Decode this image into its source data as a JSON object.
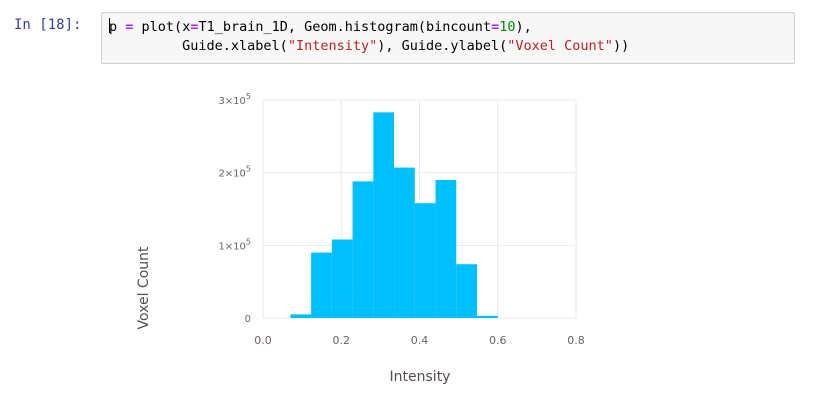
{
  "cell": {
    "prompt": "In [18]:",
    "code_lines": [
      [
        {
          "t": "p",
          "c": "plain"
        },
        {
          "t": " ",
          "c": "plain"
        },
        {
          "t": "=",
          "c": "op"
        },
        {
          "t": " plot(x",
          "c": "plain"
        },
        {
          "t": "=",
          "c": "op"
        },
        {
          "t": "T1_brain_1D, Geom.histogram(bincount",
          "c": "plain"
        },
        {
          "t": "=",
          "c": "op"
        },
        {
          "t": "10",
          "c": "num"
        },
        {
          "t": "),",
          "c": "plain"
        }
      ],
      [
        {
          "t": "         Guide.xlabel(",
          "c": "plain"
        },
        {
          "t": "\"Intensity\"",
          "c": "str"
        },
        {
          "t": "), Guide.ylabel(",
          "c": "plain"
        },
        {
          "t": "\"Voxel Count\"",
          "c": "str"
        },
        {
          "t": "))",
          "c": "plain"
        }
      ]
    ]
  },
  "colors": {
    "bar": "#00bfff",
    "grid": "#e9e9e9",
    "tick_text": "#6c606b",
    "label_text": "#564a55",
    "prompt": "#303f9f"
  },
  "chart_data": {
    "type": "bar",
    "xlabel": "Intensity",
    "ylabel": "Voxel Count",
    "xlim": [
      0.0,
      0.8
    ],
    "ylim": [
      0,
      300000
    ],
    "x_ticks": [
      "0.0",
      "0.2",
      "0.4",
      "0.6",
      "0.8"
    ],
    "y_ticks": [
      {
        "value": 0,
        "mantissa": "0",
        "exp": ""
      },
      {
        "value": 100000,
        "mantissa": "1×10",
        "exp": "5"
      },
      {
        "value": 200000,
        "mantissa": "2×10",
        "exp": "5"
      },
      {
        "value": 300000,
        "mantissa": "3×10",
        "exp": "5"
      }
    ],
    "grid": true,
    "bins": [
      {
        "x0": 0.07,
        "x1": 0.123,
        "value": 5000
      },
      {
        "x0": 0.123,
        "x1": 0.176,
        "value": 90000
      },
      {
        "x0": 0.176,
        "x1": 0.229,
        "value": 108000
      },
      {
        "x0": 0.229,
        "x1": 0.282,
        "value": 188000
      },
      {
        "x0": 0.282,
        "x1": 0.335,
        "value": 283000
      },
      {
        "x0": 0.335,
        "x1": 0.388,
        "value": 207000
      },
      {
        "x0": 0.388,
        "x1": 0.441,
        "value": 158000
      },
      {
        "x0": 0.441,
        "x1": 0.494,
        "value": 190000
      },
      {
        "x0": 0.494,
        "x1": 0.547,
        "value": 74000
      },
      {
        "x0": 0.547,
        "x1": 0.6,
        "value": 3000
      }
    ]
  }
}
